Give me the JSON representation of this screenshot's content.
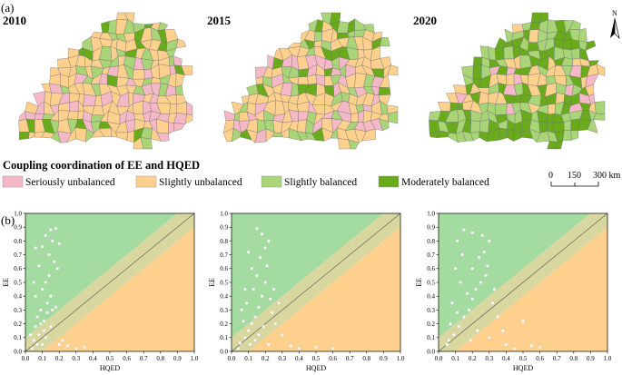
{
  "panel_a_label": "(a)",
  "panel_b_label": "(b)",
  "years": [
    "2010",
    "2015",
    "2020"
  ],
  "north_label": "N",
  "legend": {
    "title": "Coupling coordination of EE and HQED",
    "items": [
      {
        "label": "Seriously unbalanced",
        "color": "#f4b8c6"
      },
      {
        "label": "Slightly unbalanced",
        "color": "#fdd08e"
      },
      {
        "label": "Slightly balanced",
        "color": "#a9d477"
      },
      {
        "label": "Moderately balanced",
        "color": "#6aab1c"
      }
    ]
  },
  "scale_bar": {
    "ticks": [
      "0",
      "150",
      "300 km"
    ]
  },
  "map_composition": [
    {
      "year": "2010",
      "shares": [
        0.22,
        0.44,
        0.24,
        0.1
      ]
    },
    {
      "year": "2015",
      "shares": [
        0.2,
        0.44,
        0.24,
        0.12
      ]
    },
    {
      "year": "2020",
      "shares": [
        0.08,
        0.34,
        0.28,
        0.3
      ]
    }
  ],
  "chart_data": [
    {
      "type": "scatter",
      "title": "2010",
      "xlabel": "HQED",
      "ylabel": "EE",
      "xlim": [
        0,
        1
      ],
      "ylim": [
        0,
        1
      ],
      "xticks": [
        "0.0",
        "0.1",
        "0.2",
        "0.3",
        "0.4",
        "0.5",
        "0.6",
        "0.7",
        "0.8",
        "0.9",
        "1.0"
      ],
      "yticks": [
        "0.0",
        "0.1",
        "0.2",
        "0.3",
        "0.4",
        "0.5",
        "0.6",
        "0.7",
        "0.8",
        "0.9",
        "1.0"
      ],
      "regions": {
        "diagonal_band_width": 0.1,
        "upper": "EE > HQED",
        "lower": "HQED > EE"
      },
      "points": [
        [
          0.05,
          0.08
        ],
        [
          0.08,
          0.12
        ],
        [
          0.06,
          0.18
        ],
        [
          0.1,
          0.05
        ],
        [
          0.12,
          0.1
        ],
        [
          0.07,
          0.25
        ],
        [
          0.09,
          0.3
        ],
        [
          0.11,
          0.22
        ],
        [
          0.13,
          0.35
        ],
        [
          0.15,
          0.4
        ],
        [
          0.1,
          0.45
        ],
        [
          0.12,
          0.5
        ],
        [
          0.14,
          0.55
        ],
        [
          0.08,
          0.62
        ],
        [
          0.1,
          0.76
        ],
        [
          0.12,
          0.84
        ],
        [
          0.15,
          0.88
        ],
        [
          0.18,
          0.89
        ],
        [
          0.16,
          0.8
        ],
        [
          0.2,
          0.78
        ],
        [
          0.14,
          0.7
        ],
        [
          0.17,
          0.65
        ],
        [
          0.19,
          0.6
        ],
        [
          0.06,
          0.75
        ],
        [
          0.04,
          0.02
        ],
        [
          0.2,
          0.05
        ],
        [
          0.22,
          0.08
        ],
        [
          0.25,
          0.04
        ],
        [
          0.3,
          0.02
        ],
        [
          0.35,
          0.03
        ],
        [
          0.06,
          0.4
        ],
        [
          0.05,
          0.5
        ],
        [
          0.11,
          0.15
        ],
        [
          0.09,
          0.2
        ],
        [
          0.13,
          0.28
        ],
        [
          0.16,
          0.3
        ],
        [
          0.18,
          0.32
        ],
        [
          0.07,
          0.05
        ],
        [
          0.03,
          0.12
        ],
        [
          0.15,
          0.18
        ]
      ]
    },
    {
      "type": "scatter",
      "title": "2015",
      "xlabel": "HQED",
      "ylabel": "EE",
      "xlim": [
        0,
        1
      ],
      "ylim": [
        0,
        1
      ],
      "xticks": [
        "0.0",
        "0.1",
        "0.2",
        "0.3",
        "0.4",
        "0.5",
        "0.6",
        "0.7",
        "0.8",
        "0.9",
        "1.0"
      ],
      "yticks": [
        "0.0",
        "0.1",
        "0.2",
        "0.3",
        "0.4",
        "0.5",
        "0.6",
        "0.7",
        "0.8",
        "0.9",
        "1.0"
      ],
      "regions": {
        "diagonal_band_width": 0.1,
        "upper": "EE > HQED",
        "lower": "HQED > EE"
      },
      "points": [
        [
          0.05,
          0.06
        ],
        [
          0.08,
          0.1
        ],
        [
          0.1,
          0.15
        ],
        [
          0.12,
          0.2
        ],
        [
          0.14,
          0.25
        ],
        [
          0.16,
          0.32
        ],
        [
          0.18,
          0.4
        ],
        [
          0.2,
          0.5
        ],
        [
          0.15,
          0.55
        ],
        [
          0.12,
          0.6
        ],
        [
          0.17,
          0.68
        ],
        [
          0.2,
          0.75
        ],
        [
          0.22,
          0.8
        ],
        [
          0.18,
          0.85
        ],
        [
          0.15,
          0.89
        ],
        [
          0.1,
          0.72
        ],
        [
          0.13,
          0.45
        ],
        [
          0.09,
          0.35
        ],
        [
          0.07,
          0.22
        ],
        [
          0.06,
          0.3
        ],
        [
          0.24,
          0.28
        ],
        [
          0.26,
          0.2
        ],
        [
          0.3,
          0.12
        ],
        [
          0.22,
          0.05
        ],
        [
          0.35,
          0.04
        ],
        [
          0.4,
          0.02
        ],
        [
          0.5,
          0.03
        ],
        [
          0.6,
          0.02
        ],
        [
          0.28,
          0.35
        ],
        [
          0.25,
          0.45
        ],
        [
          0.21,
          0.62
        ],
        [
          0.11,
          0.05
        ],
        [
          0.04,
          0.02
        ],
        [
          0.19,
          0.18
        ],
        [
          0.16,
          0.12
        ],
        [
          0.23,
          0.38
        ],
        [
          0.14,
          0.08
        ],
        [
          0.08,
          0.45
        ]
      ]
    },
    {
      "type": "scatter",
      "title": "2020",
      "xlabel": "HQED",
      "ylabel": "EE",
      "xlim": [
        0,
        1
      ],
      "ylim": [
        0,
        1
      ],
      "xticks": [
        "0.0",
        "0.1",
        "0.2",
        "0.3",
        "0.4",
        "0.5",
        "0.6",
        "0.7",
        "0.8",
        "0.9",
        "1.0"
      ],
      "yticks": [
        "0.0",
        "0.1",
        "0.2",
        "0.3",
        "0.4",
        "0.5",
        "0.6",
        "0.7",
        "0.8",
        "0.9",
        "1.0"
      ],
      "regions": {
        "diagonal_band_width": 0.1,
        "upper": "EE > HQED",
        "lower": "HQED > EE"
      },
      "points": [
        [
          0.06,
          0.08
        ],
        [
          0.09,
          0.12
        ],
        [
          0.12,
          0.18
        ],
        [
          0.15,
          0.25
        ],
        [
          0.18,
          0.3
        ],
        [
          0.2,
          0.38
        ],
        [
          0.22,
          0.45
        ],
        [
          0.25,
          0.5
        ],
        [
          0.28,
          0.55
        ],
        [
          0.2,
          0.6
        ],
        [
          0.24,
          0.68
        ],
        [
          0.27,
          0.72
        ],
        [
          0.3,
          0.8
        ],
        [
          0.26,
          0.84
        ],
        [
          0.2,
          0.86
        ],
        [
          0.15,
          0.88
        ],
        [
          0.11,
          0.8
        ],
        [
          0.14,
          0.7
        ],
        [
          0.1,
          0.6
        ],
        [
          0.13,
          0.5
        ],
        [
          0.17,
          0.42
        ],
        [
          0.08,
          0.35
        ],
        [
          0.11,
          0.28
        ],
        [
          0.32,
          0.35
        ],
        [
          0.35,
          0.25
        ],
        [
          0.38,
          0.15
        ],
        [
          0.3,
          0.1
        ],
        [
          0.4,
          0.05
        ],
        [
          0.5,
          0.22
        ],
        [
          0.55,
          0.04
        ],
        [
          0.45,
          0.02
        ],
        [
          0.6,
          0.03
        ],
        [
          0.23,
          0.15
        ],
        [
          0.19,
          0.08
        ],
        [
          0.07,
          0.2
        ],
        [
          0.05,
          0.05
        ],
        [
          0.29,
          0.62
        ],
        [
          0.33,
          0.45
        ]
      ]
    }
  ]
}
